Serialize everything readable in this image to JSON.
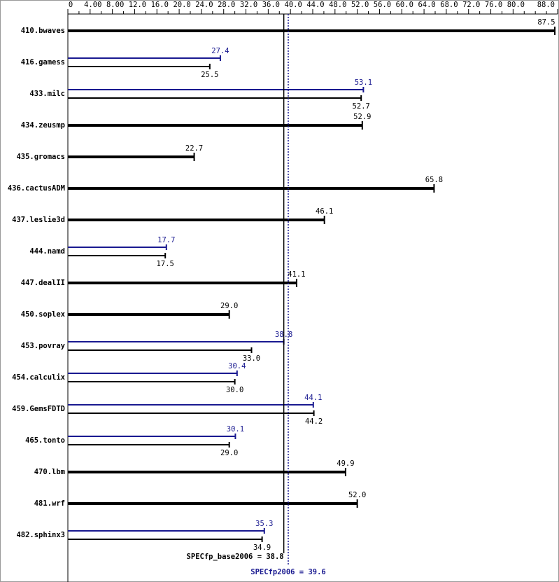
{
  "chart_data": {
    "type": "hbar",
    "categories": [
      "410.bwaves",
      "416.gamess",
      "433.milc",
      "434.zeusmp",
      "435.gromacs",
      "436.cactusADM",
      "437.leslie3d",
      "444.namd",
      "447.dealII",
      "450.soplex",
      "453.povray",
      "454.calculix",
      "459.GemsFDTD",
      "465.tonto",
      "470.lbm",
      "481.wrf",
      "482.sphinx3"
    ],
    "series": [
      {
        "color": "#000000",
        "values": [
          87.5,
          25.5,
          52.7,
          52.9,
          22.7,
          65.8,
          46.1,
          17.5,
          41.1,
          29.0,
          33.0,
          30.0,
          44.2,
          29.0,
          49.9,
          52.0,
          34.9
        ],
        "value_labels": [
          "87.5",
          "25.5",
          "52.7",
          "52.9",
          "22.7",
          "65.8",
          "46.1",
          "17.5",
          "41.1",
          "29.0",
          "33.0",
          "30.0",
          "44.2",
          "29.0",
          "49.9",
          "52.0",
          "34.9"
        ]
      },
      {
        "color": "#191990",
        "values": [
          null,
          27.4,
          53.1,
          null,
          null,
          null,
          null,
          17.7,
          null,
          null,
          38.8,
          30.4,
          44.1,
          30.1,
          null,
          null,
          35.3
        ],
        "value_labels": [
          null,
          "27.4",
          "53.1",
          null,
          null,
          null,
          null,
          "17.7",
          null,
          null,
          "38.8",
          "30.4",
          "44.1",
          "30.1",
          null,
          null,
          "35.3"
        ]
      }
    ],
    "xlim": [
      0,
      88
    ],
    "xticks": [
      0,
      {
        "value": 4,
        "label": "4.00"
      },
      {
        "value": 8,
        "label": "8.00"
      },
      {
        "value": 12,
        "label": "12.0"
      },
      {
        "value": 16,
        "label": "16.0"
      },
      {
        "value": 20,
        "label": "20.0"
      },
      {
        "value": 24,
        "label": "24.0"
      },
      {
        "value": 28,
        "label": "28.0"
      },
      {
        "value": 32,
        "label": "32.0"
      },
      {
        "value": 36,
        "label": "36.0"
      },
      {
        "value": 40,
        "label": "40.0"
      },
      {
        "value": 44,
        "label": "44.0"
      },
      {
        "value": 48,
        "label": "48.0"
      },
      {
        "value": 52,
        "label": "52.0"
      },
      {
        "value": 56,
        "label": "56.0"
      },
      {
        "value": 60,
        "label": "60.0"
      },
      {
        "value": 64,
        "label": "64.0"
      },
      {
        "value": 68,
        "label": "68.0"
      },
      {
        "value": 72,
        "label": "72.0"
      },
      {
        "value": 76,
        "label": "76.0"
      },
      {
        "value": 80,
        "label": "80.0"
      },
      {
        "value": 88,
        "label": "88.0"
      }
    ],
    "xminorticks": [
      2,
      6,
      10,
      14,
      18,
      22,
      26,
      30,
      34,
      38,
      42,
      46,
      50,
      54,
      58,
      62,
      66,
      70,
      74,
      78,
      82,
      84,
      86
    ],
    "reference_lines": [
      {
        "value": 38.8,
        "label": "SPECfp_base2006 = 38.8",
        "color": "#000000",
        "style": "solid"
      },
      {
        "value": 39.6,
        "label": "SPECfp2006 = 39.6",
        "color": "#191990",
        "style": "dotted"
      }
    ]
  }
}
